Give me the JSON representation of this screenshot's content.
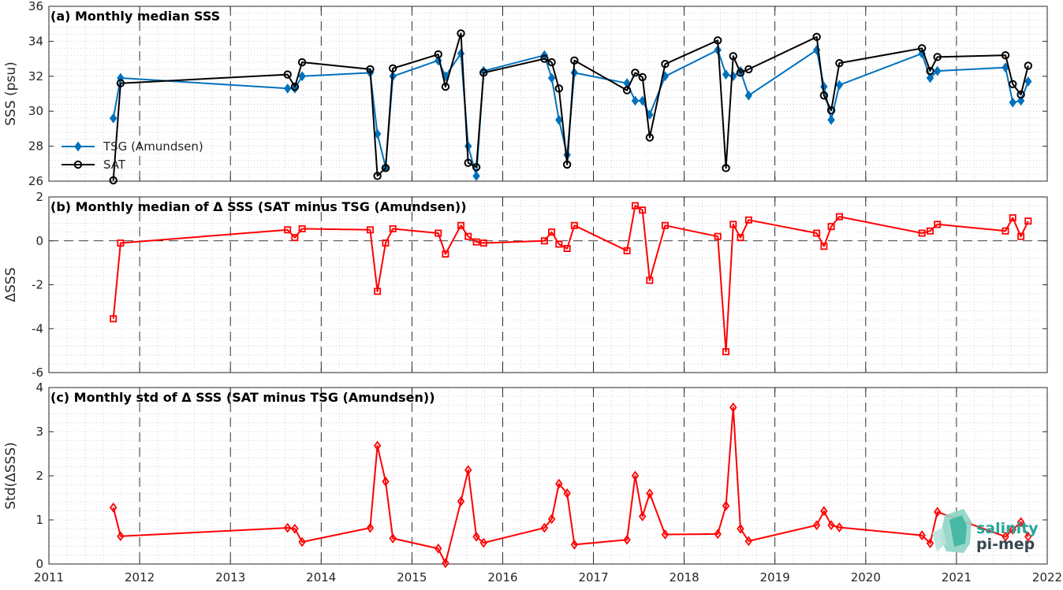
{
  "x_ticks": [
    "2011",
    "2012",
    "2013",
    "2014",
    "2015",
    "2016",
    "2017",
    "2018",
    "2019",
    "2020",
    "2021",
    "2022"
  ],
  "logo": {
    "line1": "salinity",
    "line2": "pi-mep"
  },
  "colors": {
    "tsg": "#0072BD",
    "sat": "#000000",
    "delta": "#ff0000",
    "grid": "#c8c8c8"
  },
  "chart_data": [
    {
      "type": "line",
      "title": "(a) Monthly median SSS",
      "ylabel": "SSS (psu)",
      "xlim": [
        2011,
        2022
      ],
      "ylim": [
        26,
        36
      ],
      "yticks": [
        26,
        28,
        30,
        32,
        34,
        36
      ],
      "grid": true,
      "legend": "center-left",
      "series": [
        {
          "name": "TSG (Amundsen)",
          "marker": "diamond",
          "x": [
            2011.71,
            2011.79,
            2013.63,
            2013.71,
            2013.79,
            2014.54,
            2014.62,
            2014.71,
            2014.79,
            2015.29,
            2015.37,
            2015.54,
            2015.62,
            2015.71,
            2015.79,
            2016.46,
            2016.54,
            2016.62,
            2016.71,
            2016.79,
            2017.37,
            2017.46,
            2017.54,
            2017.62,
            2017.79,
            2018.37,
            2018.46,
            2018.54,
            2018.62,
            2018.71,
            2019.46,
            2019.54,
            2019.62,
            2019.71,
            2020.62,
            2020.71,
            2020.79,
            2021.54,
            2021.62,
            2021.71,
            2021.79
          ],
          "y": [
            29.6,
            31.9,
            31.3,
            31.3,
            32.0,
            32.2,
            28.7,
            26.8,
            32.0,
            32.9,
            32.0,
            33.3,
            28.0,
            26.3,
            32.3,
            33.2,
            31.9,
            29.5,
            27.5,
            32.2,
            31.6,
            30.6,
            30.6,
            29.8,
            32.0,
            33.5,
            32.1,
            32.0,
            32.3,
            30.9,
            33.5,
            31.4,
            29.5,
            31.5,
            33.3,
            31.9,
            32.3,
            32.5,
            30.5,
            30.6,
            31.7
          ]
        },
        {
          "name": "SAT",
          "marker": "circle",
          "x": [
            2011.71,
            2011.79,
            2013.63,
            2013.71,
            2013.79,
            2014.54,
            2014.62,
            2014.71,
            2014.79,
            2015.29,
            2015.37,
            2015.54,
            2015.62,
            2015.71,
            2015.79,
            2016.46,
            2016.54,
            2016.62,
            2016.71,
            2016.79,
            2017.37,
            2017.46,
            2017.54,
            2017.62,
            2017.79,
            2018.37,
            2018.46,
            2018.54,
            2018.62,
            2018.71,
            2019.46,
            2019.54,
            2019.62,
            2019.71,
            2020.62,
            2020.71,
            2020.79,
            2021.54,
            2021.62,
            2021.71,
            2021.79
          ],
          "y": [
            26.05,
            31.6,
            32.1,
            31.4,
            32.8,
            32.4,
            26.3,
            26.75,
            32.45,
            33.25,
            31.4,
            34.45,
            27.05,
            26.8,
            32.2,
            33.0,
            32.8,
            31.3,
            26.95,
            32.9,
            31.2,
            32.2,
            31.95,
            28.5,
            32.7,
            34.05,
            26.75,
            33.15,
            32.2,
            32.4,
            34.25,
            30.9,
            30.05,
            32.75,
            33.6,
            32.3,
            33.1,
            33.2,
            31.55,
            30.95,
            32.6
          ]
        }
      ]
    },
    {
      "type": "line",
      "title": "(b) Monthly median of Δ SSS (SAT minus TSG (Amundsen))",
      "ylabel": "ΔSSS",
      "xlim": [
        2011,
        2022
      ],
      "ylim": [
        -6,
        2
      ],
      "yticks": [
        -6,
        -4,
        -2,
        0,
        2
      ],
      "grid": true,
      "reference_line": 0,
      "series": [
        {
          "marker": "square",
          "x": [
            2011.71,
            2011.79,
            2013.63,
            2013.71,
            2013.79,
            2014.54,
            2014.62,
            2014.71,
            2014.79,
            2015.29,
            2015.37,
            2015.54,
            2015.62,
            2015.71,
            2015.79,
            2016.46,
            2016.54,
            2016.62,
            2016.71,
            2016.79,
            2017.37,
            2017.46,
            2017.54,
            2017.62,
            2017.79,
            2018.37,
            2018.46,
            2018.54,
            2018.62,
            2018.71,
            2019.46,
            2019.54,
            2019.62,
            2019.71,
            2020.62,
            2020.71,
            2020.79,
            2021.54,
            2021.62,
            2021.71,
            2021.79
          ],
          "y": [
            -3.55,
            -0.1,
            0.5,
            0.15,
            0.55,
            0.5,
            -2.3,
            -0.1,
            0.55,
            0.35,
            -0.6,
            0.7,
            0.2,
            -0.05,
            -0.1,
            0.0,
            0.4,
            -0.15,
            -0.35,
            0.7,
            -0.45,
            1.6,
            1.4,
            -1.8,
            0.7,
            0.2,
            -5.05,
            0.75,
            0.15,
            0.95,
            0.35,
            -0.25,
            0.65,
            1.1,
            0.35,
            0.45,
            0.75,
            0.45,
            1.05,
            0.2,
            0.9
          ]
        }
      ]
    },
    {
      "type": "line",
      "title": "(c) Monthly std of Δ SSS (SAT minus TSG (Amundsen))",
      "ylabel": "Std(ΔSSS)",
      "xlim": [
        2011,
        2022
      ],
      "ylim": [
        0,
        4
      ],
      "yticks": [
        0,
        1,
        2,
        3,
        4
      ],
      "grid": true,
      "series": [
        {
          "marker": "diamond",
          "x": [
            2011.71,
            2011.79,
            2013.63,
            2013.71,
            2013.79,
            2014.54,
            2014.62,
            2014.71,
            2014.79,
            2015.29,
            2015.37,
            2015.54,
            2015.62,
            2015.71,
            2015.79,
            2016.46,
            2016.54,
            2016.62,
            2016.71,
            2016.79,
            2017.37,
            2017.46,
            2017.54,
            2017.62,
            2017.79,
            2018.37,
            2018.46,
            2018.54,
            2018.62,
            2018.71,
            2019.46,
            2019.54,
            2019.62,
            2019.71,
            2020.62,
            2020.71,
            2020.79,
            2021.54,
            2021.62,
            2021.71,
            2021.79
          ],
          "y": [
            1.28,
            0.63,
            0.82,
            0.8,
            0.5,
            0.82,
            2.68,
            1.87,
            0.58,
            0.35,
            0.02,
            1.42,
            2.13,
            0.62,
            0.48,
            0.82,
            1.02,
            1.82,
            1.6,
            0.44,
            0.55,
            2.0,
            1.08,
            1.6,
            0.67,
            0.68,
            1.32,
            3.55,
            0.8,
            0.52,
            0.88,
            1.2,
            0.88,
            0.83,
            0.65,
            0.47,
            1.18,
            0.62,
            0.78,
            0.95,
            0.62
          ]
        }
      ]
    }
  ]
}
